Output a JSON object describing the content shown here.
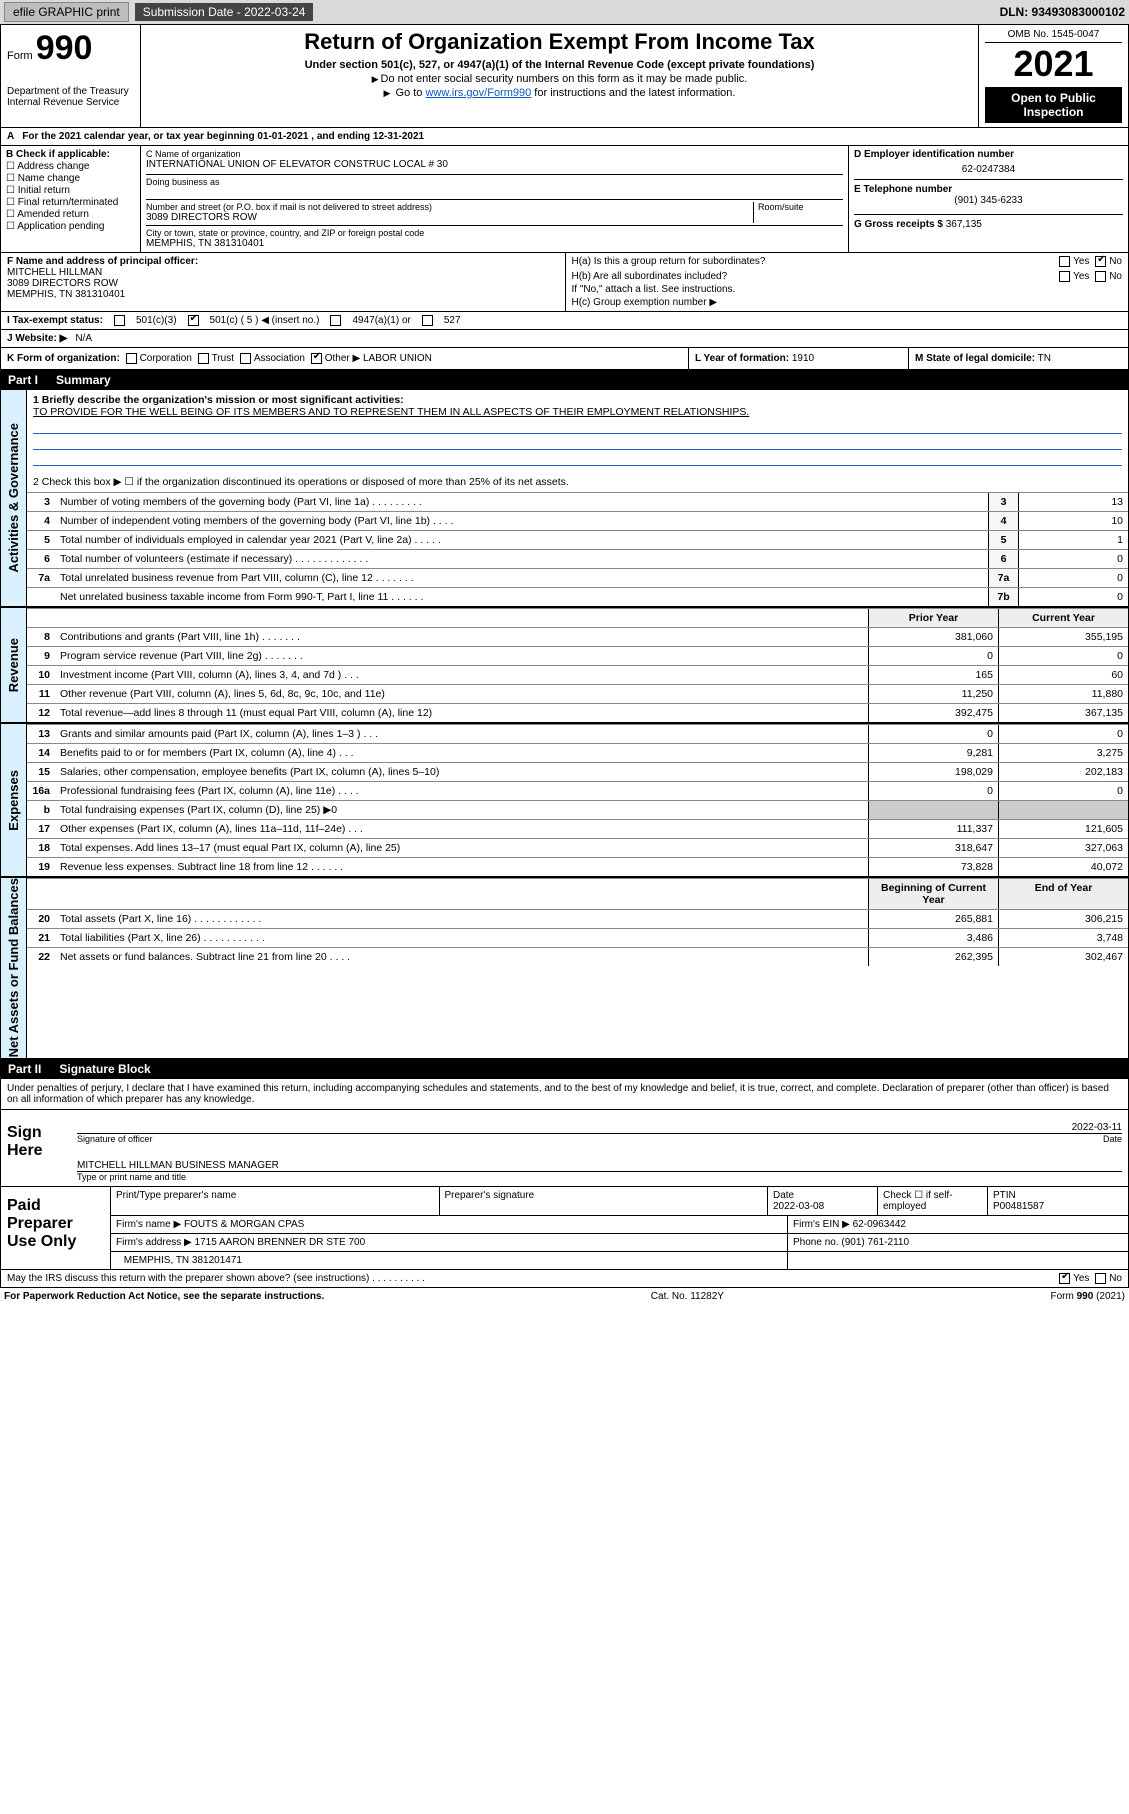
{
  "colors": {
    "link": "#0b57c2",
    "section_side": "#daf0ff",
    "header_black": "#000000",
    "line_rule": "#888888"
  },
  "topbar": {
    "efile": "efile GRAPHIC print",
    "sub_label": "Submission Date - 2022-03-24",
    "dln": "DLN: 93493083000102"
  },
  "header": {
    "form_prefix": "Form",
    "form_number": "990",
    "dept": "Department of the Treasury",
    "irs": "Internal Revenue Service",
    "title": "Return of Organization Exempt From Income Tax",
    "subtitle": "Under section 501(c), 527, or 4947(a)(1) of the Internal Revenue Code (except private foundations)",
    "note1": "Do not enter social security numbers on this form as it may be made public.",
    "note2_prefix": "Go to ",
    "note2_link": "www.irs.gov/Form990",
    "note2_suffix": " for instructions and the latest information.",
    "omb": "OMB No. 1545-0047",
    "year": "2021",
    "open": "Open to Public Inspection"
  },
  "period": {
    "text": "For the 2021 calendar year, or tax year beginning 01-01-2021   , and ending 12-31-2021"
  },
  "boxB": {
    "label": "B Check if applicable:",
    "opts": [
      "Address change",
      "Name change",
      "Initial return",
      "Final return/terminated",
      "Amended return",
      "Application pending"
    ]
  },
  "boxC": {
    "name_label": "C Name of organization",
    "name": "INTERNATIONAL UNION OF ELEVATOR CONSTRUC LOCAL # 30",
    "dba_label": "Doing business as",
    "dba": "",
    "addr_label": "Number and street (or P.O. box if mail is not delivered to street address)",
    "room_label": "Room/suite",
    "addr": "3089 DIRECTORS ROW",
    "city_label": "City or town, state or province, country, and ZIP or foreign postal code",
    "city": "MEMPHIS, TN  381310401"
  },
  "boxD": {
    "label": "D Employer identification number",
    "value": "62-0247384"
  },
  "boxE": {
    "label": "E Telephone number",
    "value": "(901) 345-6233"
  },
  "boxG": {
    "label": "G Gross receipts $",
    "value": "367,135"
  },
  "boxF": {
    "label": "F Name and address of principal officer:",
    "name": "MITCHELL HILLMAN",
    "addr1": "3089 DIRECTORS ROW",
    "addr2": "MEMPHIS, TN  381310401"
  },
  "boxH": {
    "a_label": "H(a)  Is this a group return for subordinates?",
    "a_yes": "Yes",
    "a_no": "No",
    "a_ans": "No",
    "b_label": "H(b)  Are all subordinates included?",
    "b_yes": "Yes",
    "b_no": "No",
    "b_note": "If \"No,\" attach a list. See instructions.",
    "c_label": "H(c)  Group exemption number ▶"
  },
  "rowI": {
    "label": "I  Tax-exempt status:",
    "opts": {
      "a": "501(c)(3)",
      "b": "501(c) ( 5 ) ◀ (insert no.)",
      "c": "4947(a)(1) or",
      "d": "527"
    },
    "checked": "b"
  },
  "rowJ": {
    "label": "J  Website: ▶",
    "value": "N/A"
  },
  "rowK": {
    "label": "K Form of organization:",
    "opts": [
      "Corporation",
      "Trust",
      "Association",
      "Other ▶"
    ],
    "checked": "Other",
    "other_value": "LABOR UNION",
    "L_label": "L Year of formation:",
    "L_value": "1910",
    "M_label": "M State of legal domicile:",
    "M_value": "TN"
  },
  "part1": {
    "tag": "Part I",
    "title": "Summary",
    "line1_label": "1  Briefly describe the organization's mission or most significant activities:",
    "mission": "TO PROVIDE FOR THE WELL BEING OF ITS MEMBERS AND TO REPRESENT THEM IN ALL ASPECTS OF THEIR EMPLOYMENT RELATIONSHIPS.",
    "line2": "2   Check this box ▶ ☐  if the organization discontinued its operations or disposed of more than 25% of its net assets.",
    "governance_rows": [
      {
        "n": "3",
        "t": "Number of voting members of the governing body (Part VI, line 1a)  .   .   .   .   .   .   .   .   .",
        "box": "3",
        "v": "13"
      },
      {
        "n": "4",
        "t": "Number of independent voting members of the governing body (Part VI, line 1b)   .   .   .   .",
        "box": "4",
        "v": "10"
      },
      {
        "n": "5",
        "t": "Total number of individuals employed in calendar year 2021 (Part V, line 2a)   .   .   .   .   .",
        "box": "5",
        "v": "1"
      },
      {
        "n": "6",
        "t": "Total number of volunteers (estimate if necessary)   .   .   .   .   .   .   .   .   .   .   .   .   .",
        "box": "6",
        "v": "0"
      },
      {
        "n": "7a",
        "t": "Total unrelated business revenue from Part VIII, column (C), line 12   .   .   .   .   .   .   .",
        "box": "7a",
        "v": "0"
      },
      {
        "n": "",
        "t": "Net unrelated business taxable income from Form 990-T, Part I, line 11   .   .   .   .   .   .",
        "box": "7b",
        "v": "0"
      }
    ],
    "col_prior": "Prior Year",
    "col_current": "Current Year",
    "revenue_rows": [
      {
        "n": "8",
        "t": "Contributions and grants (Part VIII, line 1h)   .   .   .   .   .   .   .",
        "p": "381,060",
        "c": "355,195"
      },
      {
        "n": "9",
        "t": "Program service revenue (Part VIII, line 2g)   .   .   .   .   .   .   .",
        "p": "0",
        "c": "0"
      },
      {
        "n": "10",
        "t": "Investment income (Part VIII, column (A), lines 3, 4, and 7d )   .   .   .",
        "p": "165",
        "c": "60"
      },
      {
        "n": "11",
        "t": "Other revenue (Part VIII, column (A), lines 5, 6d, 8c, 9c, 10c, and 11e)",
        "p": "11,250",
        "c": "11,880"
      },
      {
        "n": "12",
        "t": "Total revenue—add lines 8 through 11 (must equal Part VIII, column (A), line 12)",
        "p": "392,475",
        "c": "367,135"
      }
    ],
    "expense_rows": [
      {
        "n": "13",
        "t": "Grants and similar amounts paid (Part IX, column (A), lines 1–3 )   .   .   .",
        "p": "0",
        "c": "0"
      },
      {
        "n": "14",
        "t": "Benefits paid to or for members (Part IX, column (A), line 4)   .   .   .",
        "p": "9,281",
        "c": "3,275"
      },
      {
        "n": "15",
        "t": "Salaries, other compensation, employee benefits (Part IX, column (A), lines 5–10)",
        "p": "198,029",
        "c": "202,183"
      },
      {
        "n": "16a",
        "t": "Professional fundraising fees (Part IX, column (A), line 11e)   .   .   .   .",
        "p": "0",
        "c": "0"
      },
      {
        "n": "b",
        "t": "Total fundraising expenses (Part IX, column (D), line 25) ▶0",
        "p": "",
        "c": ""
      },
      {
        "n": "17",
        "t": "Other expenses (Part IX, column (A), lines 11a–11d, 11f–24e)   .   .   .",
        "p": "111,337",
        "c": "121,605"
      },
      {
        "n": "18",
        "t": "Total expenses. Add lines 13–17 (must equal Part IX, column (A), line 25)",
        "p": "318,647",
        "c": "327,063"
      },
      {
        "n": "19",
        "t": "Revenue less expenses. Subtract line 18 from line 12   .   .   .   .   .   .",
        "p": "73,828",
        "c": "40,072"
      }
    ],
    "net_hdr_a": "Beginning of Current Year",
    "net_hdr_b": "End of Year",
    "net_rows": [
      {
        "n": "20",
        "t": "Total assets (Part X, line 16)   .   .   .   .   .   .   .   .   .   .   .   .",
        "p": "265,881",
        "c": "306,215"
      },
      {
        "n": "21",
        "t": "Total liabilities (Part X, line 26)   .   .   .   .   .   .   .   .   .   .   .",
        "p": "3,486",
        "c": "3,748"
      },
      {
        "n": "22",
        "t": "Net assets or fund balances. Subtract line 21 from line 20   .   .   .   .",
        "p": "262,395",
        "c": "302,467"
      }
    ],
    "side_labels": {
      "gov": "Activities & Governance",
      "rev": "Revenue",
      "exp": "Expenses",
      "net": "Net Assets or Fund Balances"
    }
  },
  "part2": {
    "tag": "Part II",
    "title": "Signature Block",
    "decl": "Under penalties of perjury, I declare that I have examined this return, including accompanying schedules and statements, and to the best of my knowledge and belief, it is true, correct, and complete. Declaration of preparer (other than officer) is based on all information of which preparer has any knowledge.",
    "sign_here": "Sign Here",
    "sig_officer_label": "Signature of officer",
    "sig_date": "2022-03-11",
    "date_label": "Date",
    "sig_name": "MITCHELL HILLMAN  BUSINESS MANAGER",
    "sig_name_label": "Type or print name and title"
  },
  "paid": {
    "label": "Paid Preparer Use Only",
    "hdr": {
      "a": "Print/Type preparer's name",
      "b": "Preparer's signature",
      "c": "Date",
      "d": "Check ☐ if self-employed",
      "e": "PTIN"
    },
    "r1": {
      "a": "",
      "b": "",
      "c": "2022-03-08",
      "d": "",
      "e": "P00481587"
    },
    "firm_label": "Firm's name   ▶",
    "firm": "FOUTS & MORGAN CPAS",
    "ein_label": "Firm's EIN ▶",
    "ein": "62-0963442",
    "addr_label": "Firm's address ▶",
    "addr1": "1715 AARON BRENNER DR STE 700",
    "addr2": "MEMPHIS, TN  381201471",
    "phone_label": "Phone no.",
    "phone": "(901) 761-2110"
  },
  "footer": {
    "discuss": "May the IRS discuss this return with the preparer shown above? (see instructions)   .   .   .   .   .   .   .   .   .   .",
    "yes": "Yes",
    "no": "No",
    "ans": "Yes",
    "pra": "For Paperwork Reduction Act Notice, see the separate instructions.",
    "cat": "Cat. No. 11282Y",
    "form": "Form 990 (2021)"
  }
}
